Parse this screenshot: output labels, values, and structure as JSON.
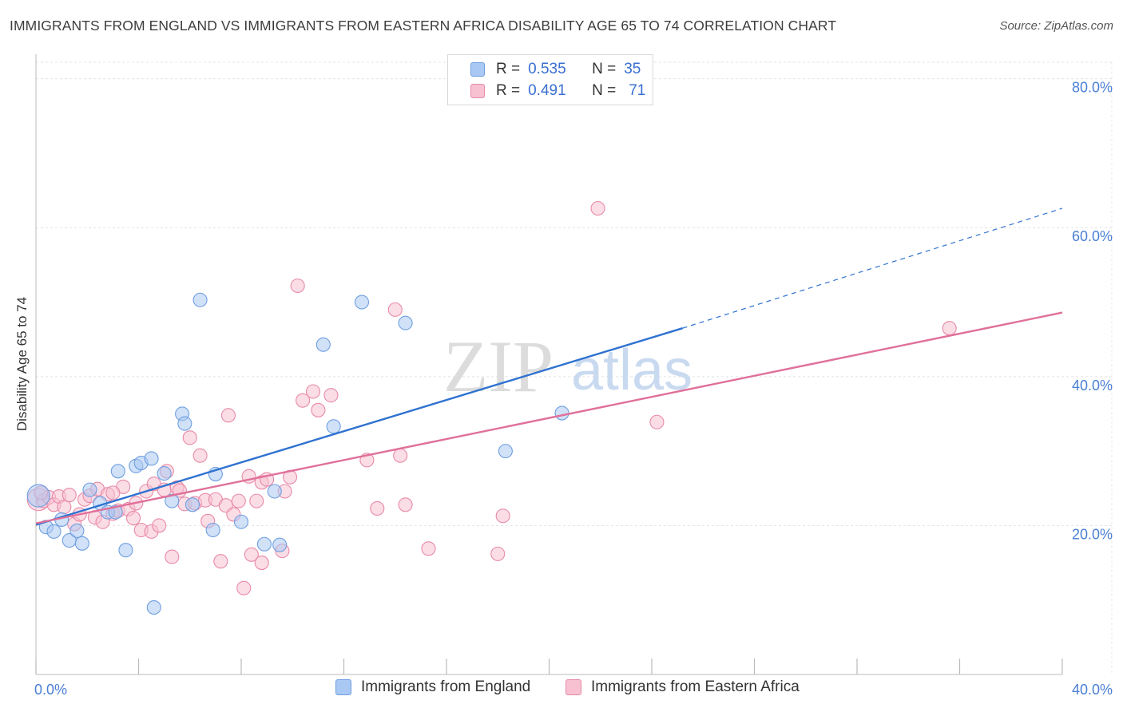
{
  "title": "IMMIGRANTS FROM ENGLAND VS IMMIGRANTS FROM EASTERN AFRICA DISABILITY AGE 65 TO 74 CORRELATION CHART",
  "source": "Source: ZipAtlas.com",
  "watermark": {
    "zip": "ZIP",
    "atlas": "atlas"
  },
  "legend_top": [
    {
      "r_label": "R =",
      "r_value": "0.535",
      "n_label": "N =",
      "n_value": "35",
      "color": "#a9c8f3",
      "border": "#6f9fe0"
    },
    {
      "r_label": "R =",
      "r_value": "0.491",
      "n_label": "N =",
      "n_value": "71",
      "color": "#f7c1d2",
      "border": "#e88aa8"
    }
  ],
  "legend_bottom": [
    {
      "label": "Immigrants from England",
      "color": "#a9c8f3",
      "border": "#6f9fe0"
    },
    {
      "label": "Immigrants from Eastern Africa",
      "color": "#f7c1d2",
      "border": "#e88aa8"
    }
  ],
  "chart_data": {
    "type": "scatter",
    "title": "IMMIGRANTS FROM ENGLAND VS IMMIGRANTS FROM EASTERN AFRICA DISABILITY AGE 65 TO 74 CORRELATION CHART",
    "xlabel": "",
    "ylabel": "Disability Age 65 to 74",
    "xlim": [
      0,
      40
    ],
    "ylim": [
      0,
      82
    ],
    "x_tick_labels": [
      "0.0%",
      "40.0%"
    ],
    "y_ticks": [
      20,
      40,
      60,
      80
    ],
    "y_tick_labels": [
      "20.0%",
      "40.0%",
      "60.0%",
      "80.0%"
    ],
    "grid": true,
    "legend_position": "top-center",
    "series": [
      {
        "name": "Immigrants from England",
        "color": "#a9c8f3",
        "stroke": "#6f9fe0",
        "trend_color": "#2f72d0",
        "trend": {
          "x0": 0,
          "y0": 20.1,
          "x1": 25.2,
          "y1": 46.5,
          "dash_x1": 40,
          "dash_y1": 62.6
        },
        "points": [
          [
            0.1,
            24.0
          ],
          [
            0.4,
            19.8
          ],
          [
            0.7,
            19.2
          ],
          [
            1.0,
            20.8
          ],
          [
            1.3,
            18.0
          ],
          [
            1.6,
            19.3
          ],
          [
            1.8,
            17.6
          ],
          [
            2.1,
            24.8
          ],
          [
            2.5,
            23.0
          ],
          [
            2.8,
            21.8
          ],
          [
            3.2,
            27.3
          ],
          [
            3.5,
            16.7
          ],
          [
            3.9,
            28.0
          ],
          [
            4.1,
            28.4
          ],
          [
            4.5,
            29.0
          ],
          [
            4.6,
            9.0
          ],
          [
            5.0,
            27.0
          ],
          [
            5.3,
            23.3
          ],
          [
            5.7,
            35.0
          ],
          [
            5.8,
            33.7
          ],
          [
            6.1,
            22.8
          ],
          [
            6.4,
            50.3
          ],
          [
            6.9,
            19.4
          ],
          [
            7.0,
            26.9
          ],
          [
            8.0,
            20.5
          ],
          [
            8.9,
            17.5
          ],
          [
            9.3,
            24.6
          ],
          [
            9.5,
            17.4
          ],
          [
            11.2,
            44.3
          ],
          [
            11.6,
            33.3
          ],
          [
            12.7,
            50.0
          ],
          [
            14.4,
            47.2
          ],
          [
            18.3,
            30.0
          ],
          [
            20.5,
            35.1
          ],
          [
            3.1,
            21.8
          ]
        ]
      },
      {
        "name": "Immigrants from Eastern Africa",
        "color": "#f7c1d2",
        "stroke": "#e88aa8",
        "trend_color": "#e0709a",
        "trend": {
          "x0": 0,
          "y0": 20.3,
          "x1": 40,
          "y1": 48.6
        },
        "points": [
          [
            0.1,
            23.5
          ],
          [
            0.3,
            23.3
          ],
          [
            0.5,
            23.8
          ],
          [
            0.7,
            22.8
          ],
          [
            0.9,
            23.9
          ],
          [
            1.1,
            22.5
          ],
          [
            1.3,
            24.1
          ],
          [
            1.5,
            20.2
          ],
          [
            1.7,
            21.5
          ],
          [
            1.9,
            23.5
          ],
          [
            2.1,
            24.0
          ],
          [
            2.3,
            21.1
          ],
          [
            2.4,
            24.9
          ],
          [
            2.6,
            20.5
          ],
          [
            2.8,
            24.2
          ],
          [
            3.0,
            21.6
          ],
          [
            3.2,
            22.0
          ],
          [
            3.4,
            25.2
          ],
          [
            3.6,
            22.2
          ],
          [
            3.8,
            21.0
          ],
          [
            3.9,
            23.0
          ],
          [
            4.1,
            19.4
          ],
          [
            4.3,
            24.6
          ],
          [
            4.5,
            19.2
          ],
          [
            4.6,
            25.6
          ],
          [
            4.8,
            20.0
          ],
          [
            5.0,
            24.8
          ],
          [
            5.1,
            27.3
          ],
          [
            5.3,
            15.8
          ],
          [
            5.5,
            25.1
          ],
          [
            5.6,
            24.7
          ],
          [
            5.8,
            22.9
          ],
          [
            6.0,
            31.8
          ],
          [
            6.2,
            23.0
          ],
          [
            6.4,
            29.4
          ],
          [
            6.6,
            23.4
          ],
          [
            6.7,
            20.6
          ],
          [
            7.0,
            23.5
          ],
          [
            7.2,
            15.2
          ],
          [
            7.4,
            22.7
          ],
          [
            7.5,
            34.8
          ],
          [
            7.7,
            21.5
          ],
          [
            7.9,
            23.3
          ],
          [
            8.1,
            11.6
          ],
          [
            8.3,
            26.6
          ],
          [
            8.4,
            16.1
          ],
          [
            8.6,
            23.3
          ],
          [
            8.8,
            25.8
          ],
          [
            8.8,
            15.0
          ],
          [
            9.0,
            26.2
          ],
          [
            9.6,
            16.6
          ],
          [
            9.7,
            24.6
          ],
          [
            9.9,
            26.5
          ],
          [
            10.2,
            52.2
          ],
          [
            10.4,
            36.8
          ],
          [
            10.8,
            38.0
          ],
          [
            11.0,
            35.5
          ],
          [
            11.5,
            37.5
          ],
          [
            12.9,
            28.8
          ],
          [
            13.3,
            22.3
          ],
          [
            14.0,
            49.0
          ],
          [
            14.2,
            29.4
          ],
          [
            14.4,
            22.8
          ],
          [
            15.3,
            16.9
          ],
          [
            18.0,
            16.2
          ],
          [
            18.2,
            21.3
          ],
          [
            21.9,
            62.6
          ],
          [
            24.2,
            33.9
          ],
          [
            35.6,
            46.5
          ],
          [
            0.2,
            24.4
          ],
          [
            3.0,
            24.4
          ]
        ]
      }
    ]
  }
}
